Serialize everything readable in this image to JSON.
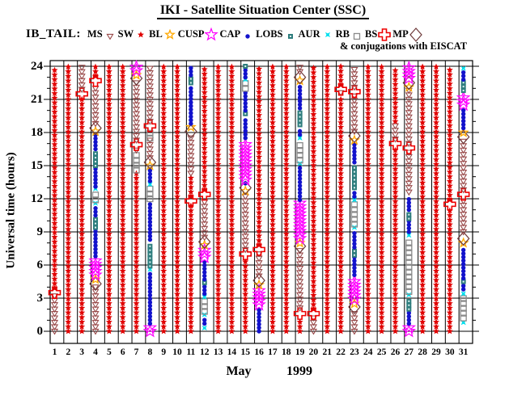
{
  "title": "IKI - Satellite Situation Center (SSC)",
  "legend": {
    "prefix": "IB_TAIL:",
    "note": "& conjugations with EISCAT",
    "items": [
      {
        "label": "MS",
        "symbol": "ms-triangle-icon"
      },
      {
        "label": "SW",
        "symbol": "sw-star-icon"
      },
      {
        "label": "BL",
        "symbol": "bl-star-icon"
      },
      {
        "label": "CUSP",
        "symbol": "cusp-star-icon"
      },
      {
        "label": "CAP",
        "symbol": "cap-circle-icon"
      },
      {
        "label": "LOBS",
        "symbol": "lobs-square-icon"
      },
      {
        "label": "AUR",
        "symbol": "aur-star-icon"
      },
      {
        "label": "RB",
        "symbol": "rb-square-icon"
      },
      {
        "label": "BS",
        "symbol": "bs-cross-icon"
      },
      {
        "label": "MP",
        "symbol": "mp-diamond-icon"
      }
    ]
  },
  "axes": {
    "y_title": "Universal time (hours)",
    "y_ticks": [
      0,
      3,
      6,
      9,
      12,
      15,
      18,
      21,
      24
    ],
    "y_range": [
      0,
      24
    ],
    "x_ticks": [
      1,
      2,
      3,
      4,
      5,
      6,
      7,
      8,
      9,
      10,
      11,
      12,
      13,
      14,
      15,
      16,
      17,
      18,
      19,
      20,
      21,
      22,
      23,
      24,
      25,
      26,
      27,
      28,
      29,
      30,
      31
    ],
    "x_month": "May",
    "x_year": "1999"
  },
  "colors": {
    "SW": "#e00000",
    "MS": "#994a4a",
    "BL": "#ffa800",
    "CUSP": "#ff00ff",
    "CAP": "#1212cc",
    "LOBS": "#2e7d7d",
    "AUR": "#00dfee",
    "RB": "#8a8a8a",
    "BS": "#ee0000",
    "MP": "#6e3a3a"
  },
  "chart_data": {
    "type": "scatter",
    "title": "IKI - Satellite Situation Center (SSC)",
    "subtitle": "IB_TAIL regions & conjugations with EISCAT",
    "xlabel": "May 1999 (day of month)",
    "ylabel": "Universal time (hours)",
    "ylim": [
      0,
      24
    ],
    "grid": "on",
    "legend_position": "top",
    "region_codes": [
      "MS",
      "SW",
      "BL",
      "CUSP",
      "CAP",
      "LOBS",
      "AUR",
      "RB",
      "BS",
      "MP"
    ],
    "series": [
      {
        "day": 1,
        "segments": [
          [
            "MS",
            0,
            3.2
          ],
          [
            "BS",
            3.5,
            3.5
          ],
          [
            "SW",
            3.9,
            24
          ]
        ]
      },
      {
        "day": 2,
        "segments": [
          [
            "SW",
            0,
            24
          ]
        ]
      },
      {
        "day": 3,
        "segments": [
          [
            "SW",
            0,
            21.1
          ],
          [
            "BS",
            21.5,
            21.5
          ],
          [
            "MS",
            21.9,
            24
          ]
        ]
      },
      {
        "day": 4,
        "segments": [
          [
            "MS",
            0,
            4.0
          ],
          [
            "MP",
            4.3,
            4.3
          ],
          [
            "BL",
            4.7,
            4.7
          ],
          [
            "CUSP",
            5.1,
            6.5
          ],
          [
            "CAP",
            6.8,
            9.2
          ],
          [
            "LOBS",
            9.4,
            10.2
          ],
          [
            "CAP",
            10.5,
            11.4
          ],
          [
            "AUR",
            11.6,
            11.6
          ],
          [
            "RB",
            11.9,
            12.7
          ],
          [
            "AUR",
            12.9,
            12.9
          ],
          [
            "CAP",
            13.1,
            14.8
          ],
          [
            "LOBS",
            15.0,
            16.3
          ],
          [
            "CAP",
            16.5,
            17.8
          ],
          [
            "BL",
            18.1,
            18.1
          ],
          [
            "MP",
            18.4,
            18.4
          ],
          [
            "MS",
            18.8,
            22.3
          ],
          [
            "BS",
            22.7,
            22.7
          ],
          [
            "SW",
            23.1,
            24
          ]
        ]
      },
      {
        "day": 5,
        "segments": [
          [
            "SW",
            0,
            24
          ]
        ]
      },
      {
        "day": 6,
        "segments": [
          [
            "SW",
            0,
            24
          ]
        ]
      },
      {
        "day": 7,
        "segments": [
          [
            "SW",
            0,
            14.4
          ],
          [
            "RB",
            14.6,
            16.2
          ],
          [
            "MS",
            16.4,
            16.6
          ],
          [
            "BS",
            16.9,
            16.9
          ],
          [
            "MS",
            17.3,
            22.6
          ],
          [
            "MP",
            22.9,
            22.9
          ],
          [
            "BL",
            23.2,
            23.2
          ],
          [
            "CUSP",
            23.6,
            24
          ]
        ]
      },
      {
        "day": 8,
        "segments": [
          [
            "CUSP",
            0,
            0.4
          ],
          [
            "CAP",
            0.7,
            5.3
          ],
          [
            "AUR",
            5.6,
            5.6
          ],
          [
            "LOBS",
            5.9,
            8.0
          ],
          [
            "CAP",
            8.3,
            11.8
          ],
          [
            "RB",
            12.0,
            13.0
          ],
          [
            "AUR",
            13.3,
            13.3
          ],
          [
            "CAP",
            13.6,
            14.7
          ],
          [
            "BL",
            15.0,
            15.0
          ],
          [
            "MP",
            15.3,
            15.3
          ],
          [
            "MS",
            15.7,
            17.3
          ],
          [
            "RB",
            17.5,
            18.3
          ],
          [
            "BS",
            18.6,
            18.6
          ],
          [
            "MS",
            19.0,
            24
          ]
        ]
      },
      {
        "day": 9,
        "segments": [
          [
            "SW",
            0,
            24
          ]
        ]
      },
      {
        "day": 10,
        "segments": [
          [
            "SW",
            0,
            24
          ]
        ]
      },
      {
        "day": 11,
        "segments": [
          [
            "SW",
            0,
            11.5
          ],
          [
            "BS",
            11.8,
            11.8
          ],
          [
            "SW",
            12.2,
            14.0
          ],
          [
            "MS",
            14.3,
            17.8
          ],
          [
            "MP",
            18.1,
            18.1
          ],
          [
            "BL",
            18.5,
            18.5
          ],
          [
            "CAP",
            18.8,
            22.3
          ],
          [
            "LOBS",
            22.5,
            23.0
          ],
          [
            "CAP",
            23.2,
            24
          ]
        ]
      },
      {
        "day": 12,
        "segments": [
          [
            "AUR",
            0.3,
            0.3
          ],
          [
            "CAP",
            0.7,
            1.3
          ],
          [
            "AUR",
            1.5,
            1.5
          ],
          [
            "RB",
            1.8,
            2.9
          ],
          [
            "AUR",
            3.1,
            3.1
          ],
          [
            "CAP",
            3.4,
            4.2
          ],
          [
            "LOBS",
            4.4,
            4.4
          ],
          [
            "CAP",
            4.7,
            6.4
          ],
          [
            "CUSP",
            6.7,
            7.5
          ],
          [
            "BL",
            7.8,
            7.8
          ],
          [
            "MP",
            8.1,
            8.1
          ],
          [
            "MS",
            8.5,
            12.0
          ],
          [
            "BS",
            12.4,
            12.4
          ],
          [
            "SW",
            12.8,
            24
          ]
        ]
      },
      {
        "day": 13,
        "segments": [
          [
            "SW",
            0,
            24
          ]
        ]
      },
      {
        "day": 14,
        "segments": [
          [
            "SW",
            0,
            24
          ]
        ]
      },
      {
        "day": 15,
        "segments": [
          [
            "SW",
            0,
            6.7
          ],
          [
            "BS",
            7.0,
            7.0
          ],
          [
            "MS",
            7.4,
            12.4
          ],
          [
            "BL",
            12.7,
            12.7
          ],
          [
            "MP",
            13.0,
            13.0
          ],
          [
            "CAP",
            13.4,
            13.4
          ],
          [
            "CUSP",
            13.7,
            17.2
          ],
          [
            "CAP",
            17.5,
            19.4
          ],
          [
            "LOBS",
            19.7,
            19.7
          ],
          [
            "CAP",
            20.0,
            21.8
          ],
          [
            "RB",
            22.0,
            22.5
          ],
          [
            "AUR",
            22.8,
            22.8
          ],
          [
            "CAP",
            23.0,
            23.8
          ],
          [
            "LOBS",
            24,
            24
          ]
        ]
      },
      {
        "day": 16,
        "segments": [
          [
            "CAP",
            0,
            2.1
          ],
          [
            "CUSP",
            2.4,
            3.9
          ],
          [
            "BL",
            4.2,
            4.2
          ],
          [
            "MP",
            4.6,
            4.6
          ],
          [
            "MS",
            5.0,
            7.1
          ],
          [
            "BS",
            7.4,
            7.4
          ],
          [
            "SW",
            7.8,
            24
          ]
        ]
      },
      {
        "day": 17,
        "segments": [
          [
            "SW",
            0,
            24
          ]
        ]
      },
      {
        "day": 18,
        "segments": [
          [
            "SW",
            0,
            24
          ]
        ]
      },
      {
        "day": 19,
        "segments": [
          [
            "SW",
            0,
            1.2
          ],
          [
            "BS",
            1.6,
            1.6
          ],
          [
            "MS",
            2.1,
            7.3
          ],
          [
            "MP",
            7.7,
            7.7
          ],
          [
            "BL",
            8.0,
            8.0
          ],
          [
            "CUSP",
            8.4,
            11.6
          ],
          [
            "CAP",
            11.9,
            15.0
          ],
          [
            "AUR",
            15.2,
            15.2
          ],
          [
            "RB",
            15.5,
            17.2
          ],
          [
            "AUR",
            17.5,
            17.5
          ],
          [
            "CAP",
            17.8,
            18.4
          ],
          [
            "LOBS",
            18.7,
            19.9
          ],
          [
            "CAP",
            20.2,
            22.3
          ],
          [
            "BL",
            22.7,
            22.7
          ],
          [
            "MP",
            23.0,
            23.0
          ],
          [
            "MS",
            23.5,
            24
          ]
        ]
      },
      {
        "day": 20,
        "segments": [
          [
            "MS",
            0,
            1.2
          ],
          [
            "BS",
            1.6,
            1.6
          ],
          [
            "SW",
            2.0,
            24
          ]
        ]
      },
      {
        "day": 21,
        "segments": [
          [
            "SW",
            0,
            24
          ]
        ]
      },
      {
        "day": 22,
        "segments": [
          [
            "SW",
            0,
            21.4
          ],
          [
            "MS",
            21.6,
            21.6
          ],
          [
            "BS",
            21.9,
            21.9
          ],
          [
            "SW",
            22.3,
            24
          ]
        ]
      },
      {
        "day": 23,
        "segments": [
          [
            "MS",
            0,
            1.8
          ],
          [
            "MP",
            2.2,
            2.2
          ],
          [
            "BL",
            2.5,
            2.5
          ],
          [
            "CUSP",
            2.9,
            4.8
          ],
          [
            "CAP",
            5.1,
            6.7
          ],
          [
            "LOBS",
            6.9,
            7.3
          ],
          [
            "CAP",
            7.6,
            9.1
          ],
          [
            "AUR",
            9.4,
            9.4
          ],
          [
            "RB",
            9.7,
            11.6
          ],
          [
            "AUR",
            11.9,
            11.9
          ],
          [
            "CAP",
            12.2,
            12.7
          ],
          [
            "LOBS",
            13.0,
            15.0
          ],
          [
            "CAP",
            15.3,
            17.0
          ],
          [
            "BL",
            17.3,
            17.3
          ],
          [
            "MP",
            17.7,
            17.7
          ],
          [
            "MS",
            18.1,
            21.3
          ],
          [
            "BS",
            21.7,
            21.7
          ],
          [
            "MS",
            22.1,
            24
          ]
        ]
      },
      {
        "day": 24,
        "segments": [
          [
            "SW",
            0,
            24
          ]
        ]
      },
      {
        "day": 25,
        "segments": [
          [
            "SW",
            0,
            24
          ]
        ]
      },
      {
        "day": 26,
        "segments": [
          [
            "SW",
            0,
            16.7
          ],
          [
            "BS",
            17.0,
            17.0
          ],
          [
            "MS",
            17.4,
            18.6
          ],
          [
            "SW",
            19.0,
            24
          ]
        ]
      },
      {
        "day": 27,
        "segments": [
          [
            "CUSP",
            0,
            0.4
          ],
          [
            "CAP",
            0.7,
            1.8
          ],
          [
            "LOBS",
            2.0,
            3.0
          ],
          [
            "AUR",
            3.3,
            3.3
          ],
          [
            "RB",
            3.6,
            8.4
          ],
          [
            "AUR",
            8.7,
            8.7
          ],
          [
            "CAP",
            9.0,
            10.0
          ],
          [
            "LOBS",
            10.2,
            10.7
          ],
          [
            "CAP",
            11.0,
            12.2
          ],
          [
            "MS",
            12.6,
            16.3
          ],
          [
            "BS",
            16.6,
            16.6
          ],
          [
            "MS",
            17.0,
            21.8
          ],
          [
            "BL",
            22.1,
            22.1
          ],
          [
            "MP",
            22.5,
            22.5
          ],
          [
            "CUSP",
            22.9,
            24
          ]
        ]
      },
      {
        "day": 28,
        "segments": [
          [
            "SW",
            0,
            24
          ]
        ]
      },
      {
        "day": 29,
        "segments": [
          [
            "SW",
            0,
            24
          ]
        ]
      },
      {
        "day": 30,
        "segments": [
          [
            "SW",
            0,
            11.2
          ],
          [
            "BS",
            11.5,
            11.5
          ],
          [
            "SW",
            11.9,
            24
          ]
        ]
      },
      {
        "day": 31,
        "segments": [
          [
            "AUR",
            0.8,
            0.8
          ],
          [
            "RB",
            1.2,
            3.1
          ],
          [
            "AUR",
            3.4,
            3.4
          ],
          [
            "CAP",
            3.8,
            4.2
          ],
          [
            "LOBS",
            4.5,
            4.5
          ],
          [
            "CAP",
            4.8,
            7.6
          ],
          [
            "BL",
            8.0,
            8.0
          ],
          [
            "MP",
            8.4,
            8.4
          ],
          [
            "MS",
            9.0,
            12.0
          ],
          [
            "BS",
            12.4,
            12.4
          ],
          [
            "MS",
            12.8,
            17.2
          ],
          [
            "MP",
            17.6,
            17.6
          ],
          [
            "BL",
            18.0,
            18.0
          ],
          [
            "CAP",
            18.4,
            20.2
          ],
          [
            "CUSP",
            20.5,
            21.4
          ],
          [
            "LOBS",
            21.8,
            22.6
          ],
          [
            "CAP",
            22.8,
            23.6
          ],
          [
            "AUR",
            23.8,
            23.8
          ]
        ]
      }
    ]
  }
}
